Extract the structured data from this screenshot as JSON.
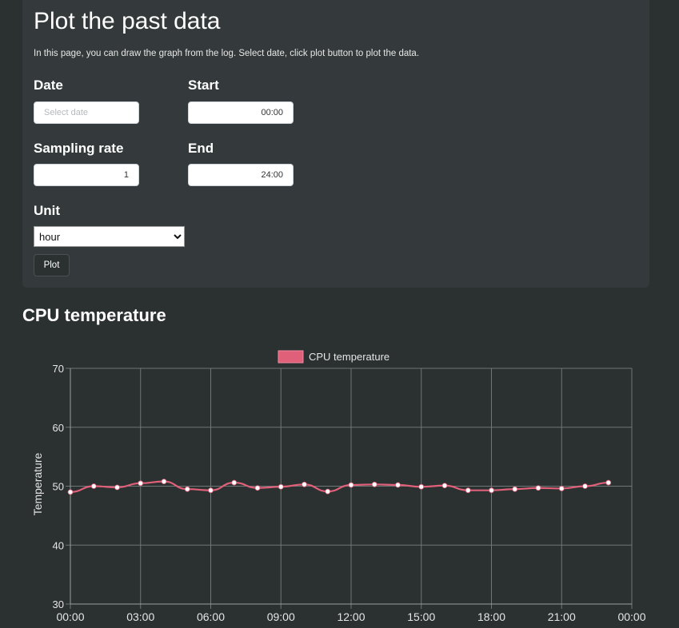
{
  "form": {
    "title": "Plot the past data",
    "description": "In this page, you can draw the graph from the log. Select date, click plot button to plot the data.",
    "date_label": "Date",
    "date_placeholder": "Select date",
    "start_label": "Start",
    "start_value": "00:00",
    "sampling_label": "Sampling rate",
    "sampling_value": "1",
    "end_label": "End",
    "end_value": "24:00",
    "unit_label": "Unit",
    "unit_selected": "hour",
    "plot_button": "Plot"
  },
  "section": {
    "title": "CPU temperature"
  },
  "colors": {
    "series_line": "#e0607a",
    "series_fill": "#e0607a",
    "point": "#ffffff",
    "grid": "#6f7676"
  },
  "chart_data": {
    "type": "line",
    "ylabel": "Temperature",
    "xlabel": "",
    "ylim": [
      30,
      70
    ],
    "yticks": [
      30,
      40,
      50,
      60,
      70
    ],
    "xlim_hours": [
      0,
      24
    ],
    "xtick_labels": [
      "00:00",
      "03:00",
      "06:00",
      "09:00",
      "12:00",
      "15:00",
      "18:00",
      "21:00",
      "00:00"
    ],
    "legend_position": "top-center",
    "grid": true,
    "series": [
      {
        "name": "CPU temperature",
        "x": [
          "00:00",
          "01:00",
          "02:00",
          "03:00",
          "04:00",
          "05:00",
          "06:00",
          "07:00",
          "08:00",
          "09:00",
          "10:00",
          "11:00",
          "12:00",
          "13:00",
          "14:00",
          "15:00",
          "16:00",
          "17:00",
          "18:00",
          "19:00",
          "20:00",
          "21:00",
          "22:00",
          "23:00"
        ],
        "values": [
          49.0,
          50.0,
          49.8,
          50.5,
          50.8,
          49.5,
          49.3,
          50.6,
          49.7,
          49.9,
          50.3,
          49.1,
          50.2,
          50.3,
          50.2,
          49.9,
          50.1,
          49.3,
          49.3,
          49.5,
          49.7,
          49.6,
          50.0,
          50.6
        ]
      }
    ]
  }
}
